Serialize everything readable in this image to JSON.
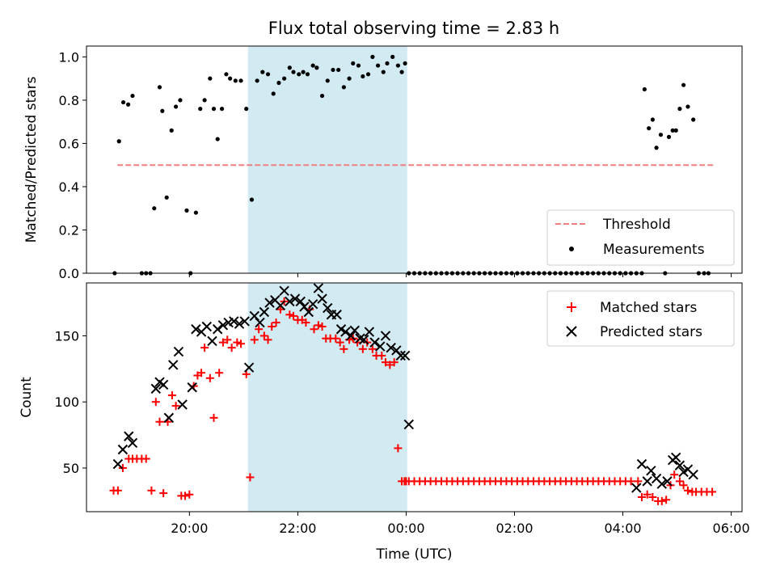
{
  "title": "Flux total observing time = 2.83 h",
  "xlabel": "Time (UTC)",
  "x_ticks": [
    "20:00",
    "22:00",
    "00:00",
    "02:00",
    "04:00",
    "06:00"
  ],
  "shaded_span": {
    "start_h": 21.08,
    "end_h": 24.02,
    "color": "#add8e6"
  },
  "chart_data": [
    {
      "type": "scatter",
      "ylabel": "Matched/Predicted stars",
      "xlim_h": [
        18.1,
        30.2
      ],
      "ylim": [
        0,
        1.05
      ],
      "y_ticks": [
        0.0,
        0.2,
        0.4,
        0.6,
        0.8,
        1.0
      ],
      "legend_position": "lower-right",
      "series": [
        {
          "name": "Threshold",
          "kind": "dashed-line",
          "color": "#f08080",
          "x_h": [
            18.67,
            29.67
          ],
          "y": [
            0.5,
            0.5
          ]
        },
        {
          "name": "Measurements",
          "kind": "dots",
          "color": "#000000",
          "x_h": [
            18.62,
            18.7,
            18.78,
            18.87,
            18.95,
            19.12,
            19.2,
            19.28,
            19.35,
            19.45,
            19.5,
            19.58,
            19.67,
            19.75,
            19.83,
            19.95,
            20.02,
            20.12,
            20.2,
            20.28,
            20.38,
            20.45,
            20.52,
            20.6,
            20.68,
            20.75,
            20.85,
            20.95,
            21.05,
            21.15,
            21.25,
            21.35,
            21.45,
            21.55,
            21.65,
            21.75,
            21.85,
            21.92,
            22.02,
            22.1,
            22.18,
            22.28,
            22.35,
            22.45,
            22.55,
            22.65,
            22.75,
            22.85,
            22.95,
            23.02,
            23.12,
            23.2,
            23.3,
            23.38,
            23.48,
            23.58,
            23.65,
            23.75,
            23.85,
            23.92,
            23.98,
            24.05,
            24.15,
            24.25,
            24.35,
            24.45,
            24.55,
            24.65,
            24.75,
            24.85,
            24.95,
            25.05,
            25.15,
            25.25,
            25.35,
            25.45,
            25.55,
            25.65,
            25.75,
            25.85,
            25.95,
            26.05,
            26.15,
            26.25,
            26.35,
            26.45,
            26.55,
            26.65,
            26.75,
            26.85,
            26.95,
            27.05,
            27.15,
            27.25,
            27.35,
            27.45,
            27.55,
            27.65,
            27.75,
            27.85,
            27.95,
            28.05,
            28.15,
            28.25,
            28.35,
            28.4,
            28.48,
            28.55,
            28.62,
            28.7,
            28.78,
            28.85,
            28.92,
            28.98,
            29.05,
            29.12,
            29.2,
            29.3,
            29.4,
            29.5,
            29.58
          ],
          "y": [
            0.0,
            0.61,
            0.79,
            0.78,
            0.82,
            0.0,
            0.0,
            0.0,
            0.3,
            0.86,
            0.75,
            0.35,
            0.66,
            0.77,
            0.8,
            0.29,
            0.0,
            0.28,
            0.76,
            0.8,
            0.9,
            0.76,
            0.62,
            0.76,
            0.92,
            0.9,
            0.89,
            0.89,
            0.76,
            0.34,
            0.89,
            0.93,
            0.92,
            0.83,
            0.88,
            0.9,
            0.95,
            0.93,
            0.92,
            0.93,
            0.92,
            0.96,
            0.95,
            0.82,
            0.89,
            0.94,
            0.94,
            0.86,
            0.9,
            0.97,
            0.96,
            0.91,
            0.92,
            1.0,
            0.96,
            0.93,
            0.97,
            1.0,
            0.96,
            0.93,
            0.97,
            0.0,
            0.0,
            0.0,
            0.0,
            0.0,
            0.0,
            0.0,
            0.0,
            0.0,
            0.0,
            0.0,
            0.0,
            0.0,
            0.0,
            0.0,
            0.0,
            0.0,
            0.0,
            0.0,
            0.0,
            0.0,
            0.0,
            0.0,
            0.0,
            0.0,
            0.0,
            0.0,
            0.0,
            0.0,
            0.0,
            0.0,
            0.0,
            0.0,
            0.0,
            0.0,
            0.0,
            0.0,
            0.0,
            0.0,
            0.0,
            0.0,
            0.0,
            0.0,
            0.0,
            0.85,
            0.67,
            0.71,
            0.58,
            0.64,
            0.0,
            0.63,
            0.66,
            0.66,
            0.76,
            0.87,
            0.77,
            0.71,
            0.0,
            0.0,
            0.0
          ]
        }
      ]
    },
    {
      "type": "scatter",
      "ylabel": "Count",
      "xlim_h": [
        18.1,
        30.2
      ],
      "ylim": [
        17,
        190
      ],
      "y_ticks": [
        50,
        100,
        150
      ],
      "legend_position": "upper-right",
      "series": [
        {
          "name": "Matched stars",
          "marker": "plus",
          "color": "#ff0000",
          "x_h": [
            18.6,
            18.68,
            18.77,
            18.88,
            18.95,
            19.03,
            19.12,
            19.2,
            19.3,
            19.38,
            19.45,
            19.52,
            19.6,
            19.68,
            19.75,
            19.85,
            19.92,
            20.0,
            20.08,
            20.15,
            20.22,
            20.28,
            20.38,
            20.45,
            20.55,
            20.62,
            20.7,
            20.78,
            20.88,
            20.95,
            21.05,
            21.12,
            21.2,
            21.28,
            21.38,
            21.45,
            21.52,
            21.6,
            21.68,
            21.75,
            21.85,
            21.92,
            22.0,
            22.08,
            22.15,
            22.22,
            22.3,
            22.38,
            22.45,
            22.52,
            22.6,
            22.7,
            22.78,
            22.85,
            22.95,
            23.02,
            23.1,
            23.2,
            23.28,
            23.38,
            23.45,
            23.55,
            23.62,
            23.7,
            23.78,
            23.85,
            23.92,
            23.97,
            24.0,
            24.05,
            24.15,
            24.25,
            24.35,
            24.45,
            24.55,
            24.65,
            24.75,
            24.85,
            24.95,
            25.05,
            25.15,
            25.25,
            25.35,
            25.45,
            25.55,
            25.65,
            25.75,
            25.85,
            25.95,
            26.05,
            26.15,
            26.25,
            26.35,
            26.45,
            26.55,
            26.65,
            26.75,
            26.85,
            26.95,
            27.05,
            27.15,
            27.25,
            27.35,
            27.45,
            27.55,
            27.65,
            27.75,
            27.85,
            27.95,
            28.05,
            28.15,
            28.28,
            28.35,
            28.45,
            28.55,
            28.65,
            28.72,
            28.8,
            28.88,
            28.95,
            29.05,
            29.12,
            29.2,
            29.28,
            29.35,
            29.45,
            29.55,
            29.65
          ],
          "y": [
            33,
            33,
            50,
            57,
            57,
            57,
            57,
            57,
            33,
            100,
            85,
            31,
            85,
            105,
            97,
            29,
            29,
            30,
            112,
            120,
            122,
            141,
            118,
            88,
            122,
            145,
            147,
            141,
            145,
            144,
            121,
            43,
            147,
            155,
            150,
            147,
            157,
            160,
            170,
            176,
            166,
            165,
            162,
            162,
            160,
            170,
            155,
            158,
            157,
            148,
            148,
            148,
            145,
            140,
            147,
            148,
            145,
            140,
            145,
            140,
            135,
            135,
            130,
            128,
            130,
            65,
            40,
            40,
            40,
            40,
            40,
            40,
            40,
            40,
            40,
            40,
            40,
            40,
            40,
            40,
            40,
            40,
            40,
            40,
            40,
            40,
            40,
            40,
            40,
            40,
            40,
            40,
            40,
            40,
            40,
            40,
            40,
            40,
            40,
            40,
            40,
            40,
            40,
            40,
            40,
            40,
            40,
            40,
            40,
            40,
            40,
            40,
            28,
            30,
            28,
            25,
            25,
            26,
            37,
            45,
            40,
            37,
            33,
            32,
            32,
            32,
            32,
            32
          ],
          "y_note": ""
        },
        {
          "name": "Predicted stars",
          "marker": "x",
          "color": "#000000",
          "x_h": [
            18.68,
            18.77,
            18.88,
            18.95,
            19.38,
            19.45,
            19.52,
            19.62,
            19.7,
            19.8,
            19.87,
            20.05,
            20.12,
            20.22,
            20.32,
            20.42,
            20.52,
            20.62,
            20.72,
            20.82,
            20.92,
            21.02,
            21.1,
            21.2,
            21.3,
            21.38,
            21.48,
            21.58,
            21.68,
            21.75,
            21.85,
            21.95,
            22.05,
            22.12,
            22.2,
            22.28,
            22.38,
            22.45,
            22.55,
            22.62,
            22.72,
            22.8,
            22.88,
            22.98,
            23.05,
            23.15,
            23.22,
            23.32,
            23.42,
            23.52,
            23.62,
            23.72,
            23.82,
            23.9,
            23.98,
            24.05,
            28.25,
            28.35,
            28.45,
            28.52,
            28.62,
            28.72,
            28.82,
            28.92,
            28.98,
            29.05,
            29.12,
            29.2,
            29.3
          ],
          "y": [
            53,
            64,
            74,
            69,
            110,
            115,
            113,
            88,
            128,
            138,
            98,
            111,
            155,
            153,
            157,
            146,
            155,
            158,
            160,
            161,
            159,
            161,
            126,
            165,
            160,
            168,
            175,
            177,
            173,
            184,
            176,
            178,
            176,
            172,
            168,
            174,
            186,
            178,
            171,
            166,
            166,
            155,
            153,
            150,
            154,
            148,
            147,
            153,
            145,
            142,
            150,
            141,
            139,
            135,
            135,
            83,
            35,
            53,
            40,
            48,
            42,
            38,
            40,
            56,
            58,
            52,
            47,
            49,
            45
          ]
        }
      ]
    }
  ]
}
